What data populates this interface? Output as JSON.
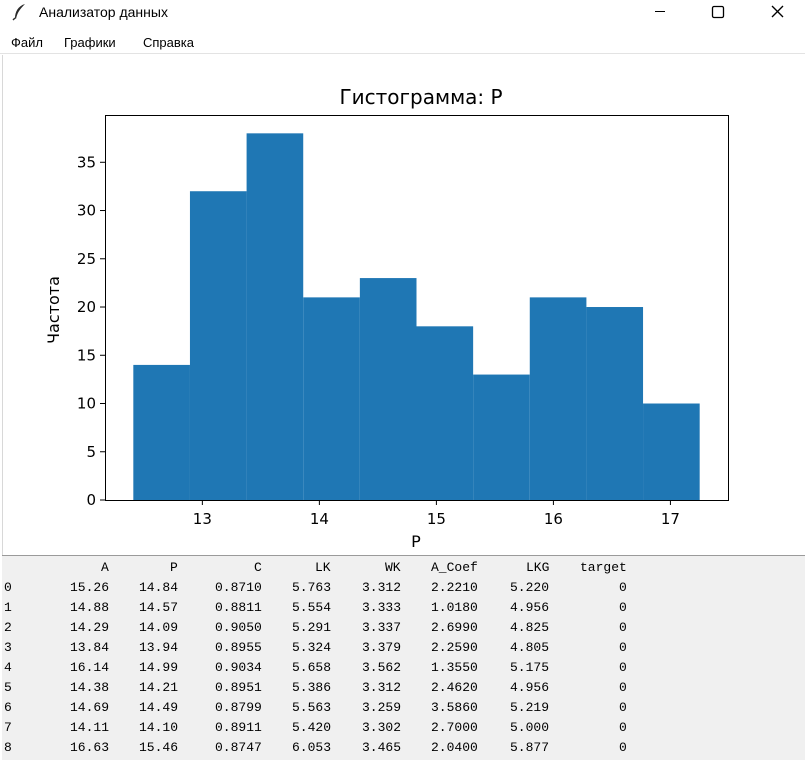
{
  "window": {
    "title": "Анализатор данных",
    "icon": "feather-icon"
  },
  "menu": [
    "Файл",
    "Графики",
    "Справка"
  ],
  "chart_data": {
    "type": "bar",
    "title": "Гистограмма: P",
    "xlabel": "P",
    "ylabel": "Частота",
    "bin_edges": [
      12.41,
      12.894,
      13.378,
      13.862,
      14.346,
      14.83,
      15.314,
      15.798,
      16.282,
      16.766,
      17.25
    ],
    "values": [
      14,
      32,
      38,
      21,
      23,
      18,
      13,
      21,
      20,
      10
    ],
    "xticks": [
      13,
      14,
      15,
      16,
      17
    ],
    "yticks": [
      0,
      5,
      10,
      15,
      20,
      25,
      30,
      35
    ],
    "xlim": [
      12.168,
      17.492
    ],
    "ylim": [
      0,
      39.9
    ],
    "color": "#1f77b4",
    "grid": false
  },
  "table": {
    "columns": [
      "A",
      "P",
      "C",
      "LK",
      "WK",
      "A_Coef",
      "LKG",
      "target"
    ],
    "rows": [
      {
        "index": "0",
        "cells": [
          "15.26",
          "14.84",
          "0.8710",
          "5.763",
          "3.312",
          "2.2210",
          "5.220",
          "0"
        ]
      },
      {
        "index": "1",
        "cells": [
          "14.88",
          "14.57",
          "0.8811",
          "5.554",
          "3.333",
          "1.0180",
          "4.956",
          "0"
        ]
      },
      {
        "index": "2",
        "cells": [
          "14.29",
          "14.09",
          "0.9050",
          "5.291",
          "3.337",
          "2.6990",
          "4.825",
          "0"
        ]
      },
      {
        "index": "3",
        "cells": [
          "13.84",
          "13.94",
          "0.8955",
          "5.324",
          "3.379",
          "2.2590",
          "4.805",
          "0"
        ]
      },
      {
        "index": "4",
        "cells": [
          "16.14",
          "14.99",
          "0.9034",
          "5.658",
          "3.562",
          "1.3550",
          "5.175",
          "0"
        ]
      },
      {
        "index": "5",
        "cells": [
          "14.38",
          "14.21",
          "0.8951",
          "5.386",
          "3.312",
          "2.4620",
          "4.956",
          "0"
        ]
      },
      {
        "index": "6",
        "cells": [
          "14.69",
          "14.49",
          "0.8799",
          "5.563",
          "3.259",
          "3.5860",
          "5.219",
          "0"
        ]
      },
      {
        "index": "7",
        "cells": [
          "14.11",
          "14.10",
          "0.8911",
          "5.420",
          "3.302",
          "2.7000",
          "5.000",
          "0"
        ]
      },
      {
        "index": "8",
        "cells": [
          "16.63",
          "15.46",
          "0.8747",
          "6.053",
          "3.465",
          "2.0400",
          "5.877",
          "0"
        ]
      }
    ]
  }
}
